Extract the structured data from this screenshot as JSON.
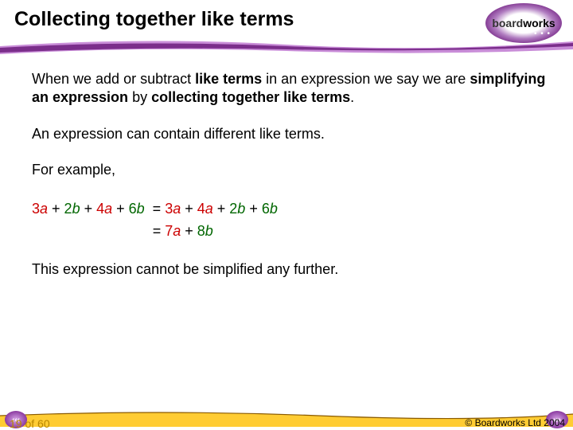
{
  "header": {
    "title": "Collecting together like terms",
    "logo": {
      "prefix": "board",
      "suffix": "works",
      "dots": "• • •"
    }
  },
  "content": {
    "p1_parts": [
      {
        "t": "When we add or subtract ",
        "b": false
      },
      {
        "t": "like terms",
        "b": true
      },
      {
        "t": " in an expression we say we are ",
        "b": false
      },
      {
        "t": "simplifying an expression",
        "b": true
      },
      {
        "t": " by ",
        "b": false
      },
      {
        "t": "collecting together like terms",
        "b": true
      },
      {
        "t": ".",
        "b": false
      }
    ],
    "p2": "An expression can contain different like terms.",
    "p3": "For example,",
    "eq": {
      "line1": {
        "lhs": [
          {
            "coef": "3",
            "var": "a",
            "cls": "a"
          },
          {
            "op": " + "
          },
          {
            "coef": "2",
            "var": "b",
            "cls": "b"
          },
          {
            "op": " + "
          },
          {
            "coef": "4",
            "var": "a",
            "cls": "a"
          },
          {
            "op": " + "
          },
          {
            "coef": "6",
            "var": "b",
            "cls": "b"
          }
        ],
        "rhs": [
          {
            "coef": "3",
            "var": "a",
            "cls": "a"
          },
          {
            "op": " + "
          },
          {
            "coef": "4",
            "var": "a",
            "cls": "a"
          },
          {
            "op": " + "
          },
          {
            "coef": "2",
            "var": "b",
            "cls": "b"
          },
          {
            "op": " + "
          },
          {
            "coef": "6",
            "var": "b",
            "cls": "b"
          }
        ]
      },
      "line2": {
        "rhs": [
          {
            "coef": "7",
            "var": "a",
            "cls": "a"
          },
          {
            "op": " + "
          },
          {
            "coef": "8",
            "var": "b",
            "cls": "b"
          }
        ]
      }
    },
    "p4": "This expression cannot be simplified any further."
  },
  "footer": {
    "page": "19 of 60",
    "copyright": "© Boardworks Ltd 2004",
    "nav_prev": "‹‹‹",
    "nav_next": "›››"
  },
  "style": {
    "title_color": "#000000",
    "swoosh_purple": "#7b2e8b",
    "swoosh_light": "#c98dd8",
    "color_a": "#cc0000",
    "color_b": "#006600",
    "footer_yellow": "#ffcc33",
    "footer_line": "#8a5a00"
  }
}
